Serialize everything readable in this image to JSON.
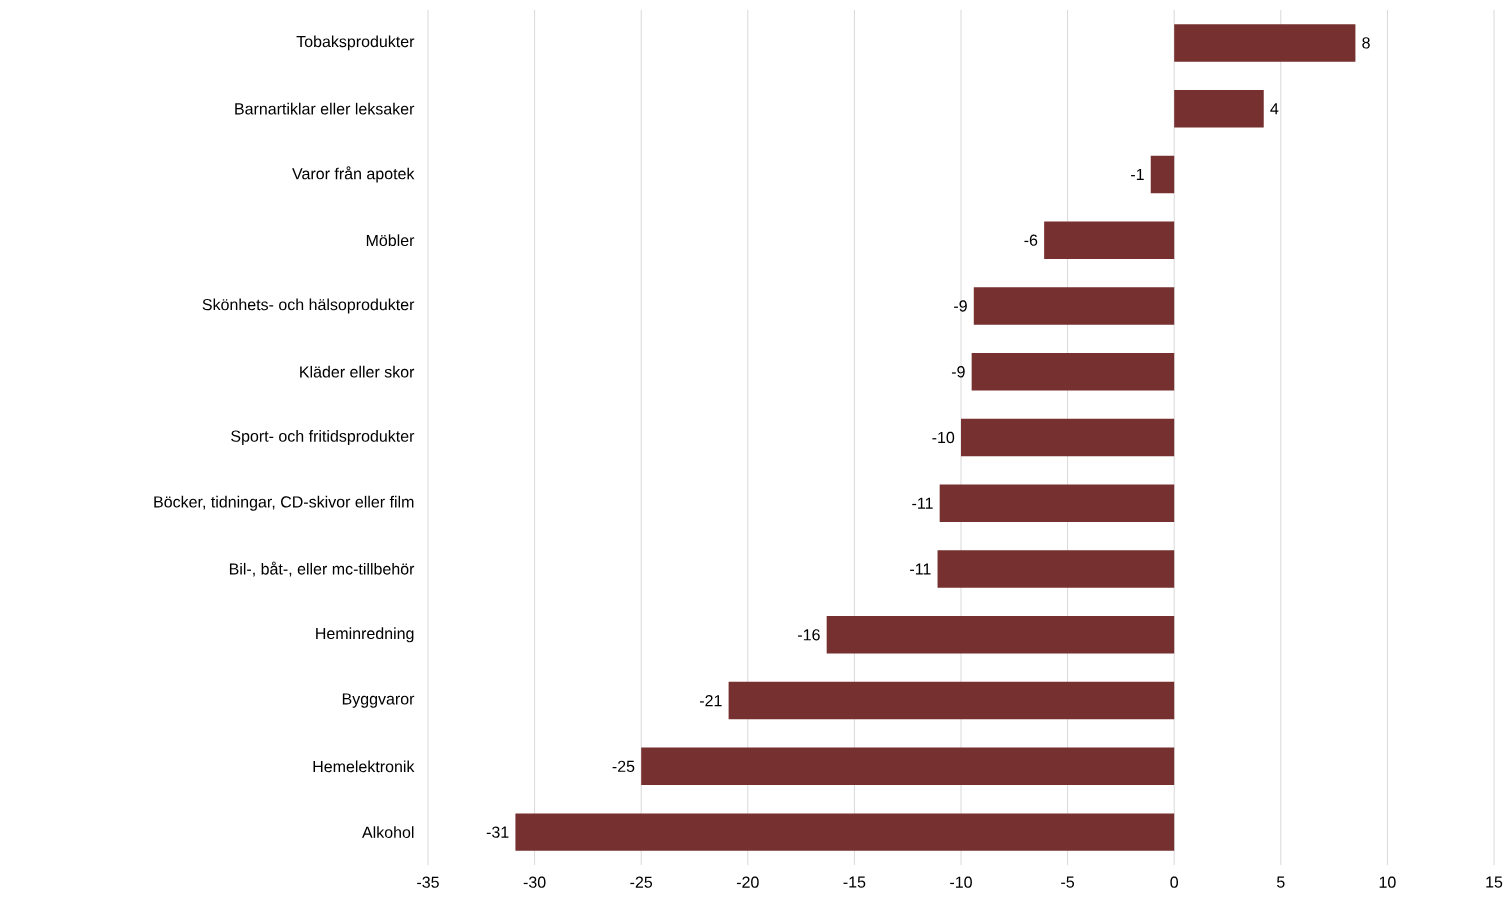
{
  "chart_data": {
    "type": "bar",
    "orientation": "horizontal",
    "categories": [
      "Tobaksprodukter",
      "Barnartiklar eller leksaker",
      "Varor från apotek",
      "Möbler",
      "Skönhets- och hälsoprodukter",
      "Kläder eller skor",
      "Sport- och fritidsprodukter",
      "Böcker, tidningar, CD-skivor eller film",
      "Bil-, båt-, eller mc-tillbehör",
      "Heminredning",
      "Byggvaror",
      "Hemelektronik",
      "Alkohol"
    ],
    "values": [
      8.5,
      4.2,
      -1.1,
      -6.1,
      -9.4,
      -9.5,
      -10.0,
      -11.0,
      -11.1,
      -16.3,
      -20.9,
      -25.0,
      -30.9
    ],
    "value_labels": [
      "8",
      "4",
      "-1",
      "-6",
      "-9",
      "-9",
      "-10",
      "-11",
      "-11",
      "-16",
      "-21",
      "-25",
      "-31"
    ],
    "color": "#76302f",
    "xlim": [
      -35,
      15
    ],
    "xticks": [
      -35,
      -30,
      -25,
      -20,
      -15,
      -10,
      -5,
      0,
      5,
      10,
      15
    ],
    "grid": "x"
  }
}
